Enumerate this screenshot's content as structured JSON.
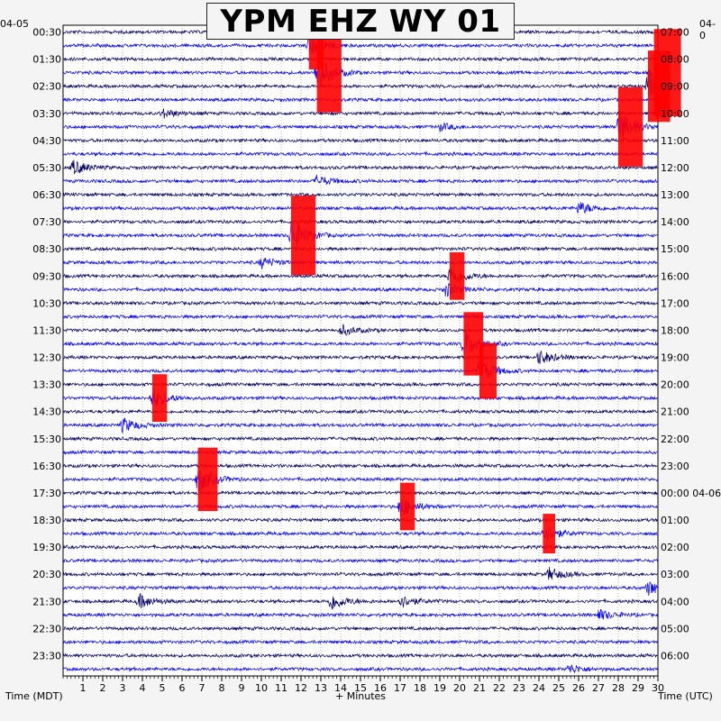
{
  "title": "YPM EHZ WY 01",
  "chart_data": {
    "type": "seismogram",
    "title": "YPM EHZ WY 01",
    "xlabel": "+ Minutes",
    "left_axis_label": "Time (MDT)",
    "right_axis_label": "Time (UTC)",
    "left_date": "04-05",
    "right_date": "04-0",
    "right_date_change": "04-06",
    "xlim": [
      0,
      30
    ],
    "x_ticks": [
      "1",
      "2",
      "3",
      "4",
      "5",
      "6",
      "7",
      "8",
      "9",
      "10",
      "11",
      "12",
      "13",
      "14",
      "15",
      "16",
      "17",
      "18",
      "19",
      "20",
      "21",
      "22",
      "23",
      "24",
      "25",
      "26",
      "27",
      "28",
      "29",
      "30"
    ],
    "left_ticks": [
      "00:30",
      "01:30",
      "02:30",
      "03:30",
      "04:30",
      "05:30",
      "06:30",
      "07:30",
      "08:30",
      "09:30",
      "10:30",
      "11:30",
      "12:30",
      "13:30",
      "14:30",
      "15:30",
      "16:30",
      "17:30",
      "18:30",
      "19:30",
      "20:30",
      "21:30",
      "22:30",
      "23:30"
    ],
    "right_ticks": [
      "07:00",
      "08:00",
      "09:00",
      "10:00",
      "11:00",
      "12:00",
      "13:00",
      "14:00",
      "15:00",
      "16:00",
      "17:00",
      "18:00",
      "19:00",
      "20:00",
      "21:00",
      "22:00",
      "23:00",
      "00:00 04-06",
      "01:00",
      "02:00",
      "03:00",
      "04:00",
      "05:00",
      "06:00"
    ],
    "trace_count": 48,
    "trace_minutes": 30,
    "trace_colors": [
      "#000066",
      "#0000ff"
    ],
    "clip_color": "#ff0000",
    "grid": true,
    "events": [
      {
        "trace": 1,
        "minute": 12.4,
        "amplitude": 12,
        "clipped": true
      },
      {
        "trace": 3,
        "minute": 12.8,
        "amplitude": 20,
        "clipped": true
      },
      {
        "trace": 3,
        "minute": 29.8,
        "amplitude": 22,
        "clipped": true
      },
      {
        "trace": 4,
        "minute": 29.5,
        "amplitude": 18,
        "clipped": true
      },
      {
        "trace": 6,
        "minute": 5.0,
        "amplitude": 5,
        "clipped": false
      },
      {
        "trace": 7,
        "minute": 19.0,
        "amplitude": 4,
        "clipped": false
      },
      {
        "trace": 7,
        "minute": 28.0,
        "amplitude": 20,
        "clipped": true
      },
      {
        "trace": 10,
        "minute": 0.5,
        "amplitude": 8,
        "clipped": false
      },
      {
        "trace": 11,
        "minute": 12.8,
        "amplitude": 6,
        "clipped": false
      },
      {
        "trace": 13,
        "minute": 26.0,
        "amplitude": 7,
        "clipped": false
      },
      {
        "trace": 15,
        "minute": 11.5,
        "amplitude": 20,
        "clipped": true
      },
      {
        "trace": 17,
        "minute": 10.0,
        "amplitude": 6,
        "clipped": false
      },
      {
        "trace": 18,
        "minute": 19.5,
        "amplitude": 12,
        "clipped": true
      },
      {
        "trace": 19,
        "minute": 19.3,
        "amplitude": 8,
        "clipped": false
      },
      {
        "trace": 22,
        "minute": 14.0,
        "amplitude": 6,
        "clipped": false
      },
      {
        "trace": 23,
        "minute": 20.2,
        "amplitude": 16,
        "clipped": true
      },
      {
        "trace": 24,
        "minute": 24.0,
        "amplitude": 8,
        "clipped": false
      },
      {
        "trace": 25,
        "minute": 21.0,
        "amplitude": 14,
        "clipped": true
      },
      {
        "trace": 27,
        "minute": 4.5,
        "amplitude": 12,
        "clipped": true
      },
      {
        "trace": 29,
        "minute": 3.0,
        "amplitude": 8,
        "clipped": false
      },
      {
        "trace": 33,
        "minute": 6.8,
        "amplitude": 16,
        "clipped": true
      },
      {
        "trace": 35,
        "minute": 17.0,
        "amplitude": 12,
        "clipped": true
      },
      {
        "trace": 37,
        "minute": 24.2,
        "amplitude": 10,
        "clipped": true
      },
      {
        "trace": 40,
        "minute": 24.5,
        "amplitude": 7,
        "clipped": false
      },
      {
        "trace": 42,
        "minute": 3.8,
        "amplitude": 8,
        "clipped": false
      },
      {
        "trace": 42,
        "minute": 13.5,
        "amplitude": 10,
        "clipped": false
      },
      {
        "trace": 42,
        "minute": 17.0,
        "amplitude": 7,
        "clipped": false
      },
      {
        "trace": 41,
        "minute": 29.5,
        "amplitude": 8,
        "clipped": false
      },
      {
        "trace": 43,
        "minute": 27.0,
        "amplitude": 6,
        "clipped": false
      },
      {
        "trace": 47,
        "minute": 25.5,
        "amplitude": 5,
        "clipped": false
      }
    ]
  }
}
